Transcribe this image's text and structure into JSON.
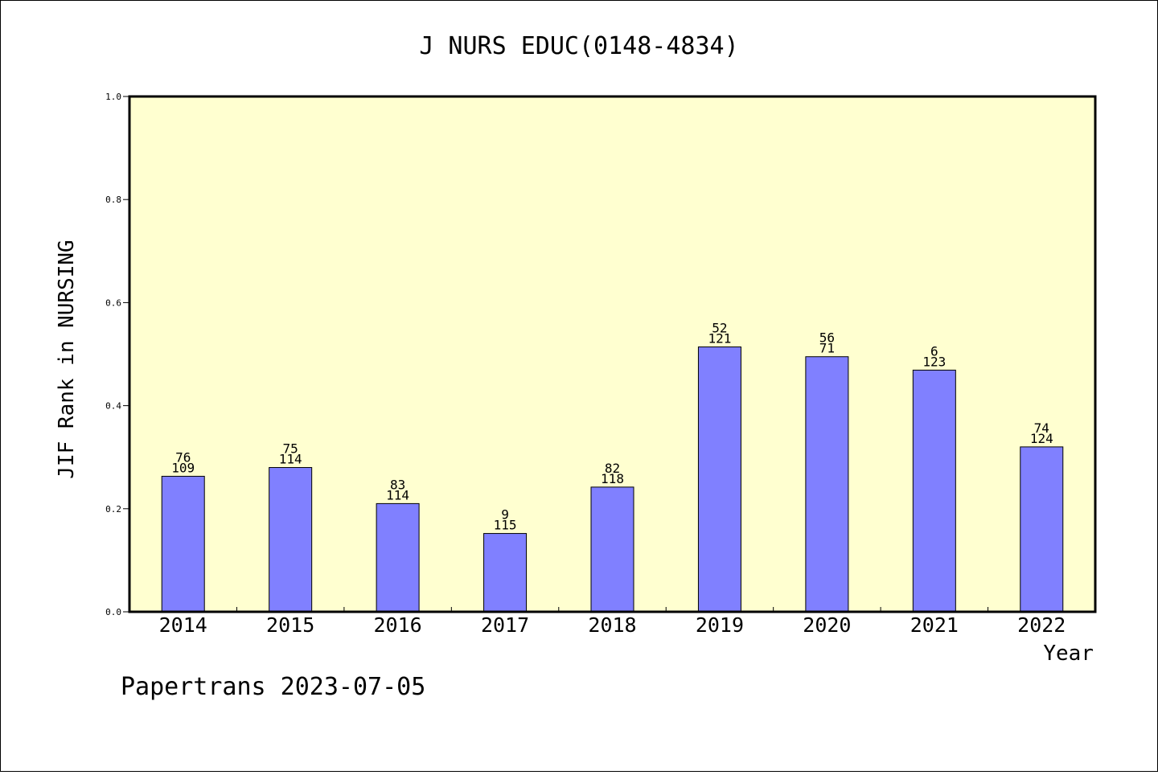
{
  "chart_data": {
    "type": "bar",
    "title": "J NURS EDUC(0148-4834)",
    "xlabel": "Year",
    "ylabel": "JIF Rank in NURSING",
    "ylim": [
      0,
      1.0
    ],
    "yticks": [
      "0.0",
      "0.2",
      "0.4",
      "0.6",
      "0.8",
      "1.0"
    ],
    "categories": [
      "2014",
      "2015",
      "2016",
      "2017",
      "2018",
      "2019",
      "2020",
      "2021",
      "2022"
    ],
    "values": [
      0.263,
      0.28,
      0.21,
      0.152,
      0.242,
      0.514,
      0.495,
      0.469,
      0.32
    ],
    "ranks": [
      "76",
      "75",
      "83",
      "9",
      "82",
      "52",
      "56",
      "6",
      "74"
    ],
    "totals": [
      "109",
      "114",
      "114",
      "115",
      "118",
      "121",
      "71",
      "123",
      "124"
    ],
    "grid": false,
    "colors": {
      "bar": "#8080ff",
      "plot_background": "#ffffd0"
    }
  },
  "footer": "Papertrans 2023-07-05"
}
